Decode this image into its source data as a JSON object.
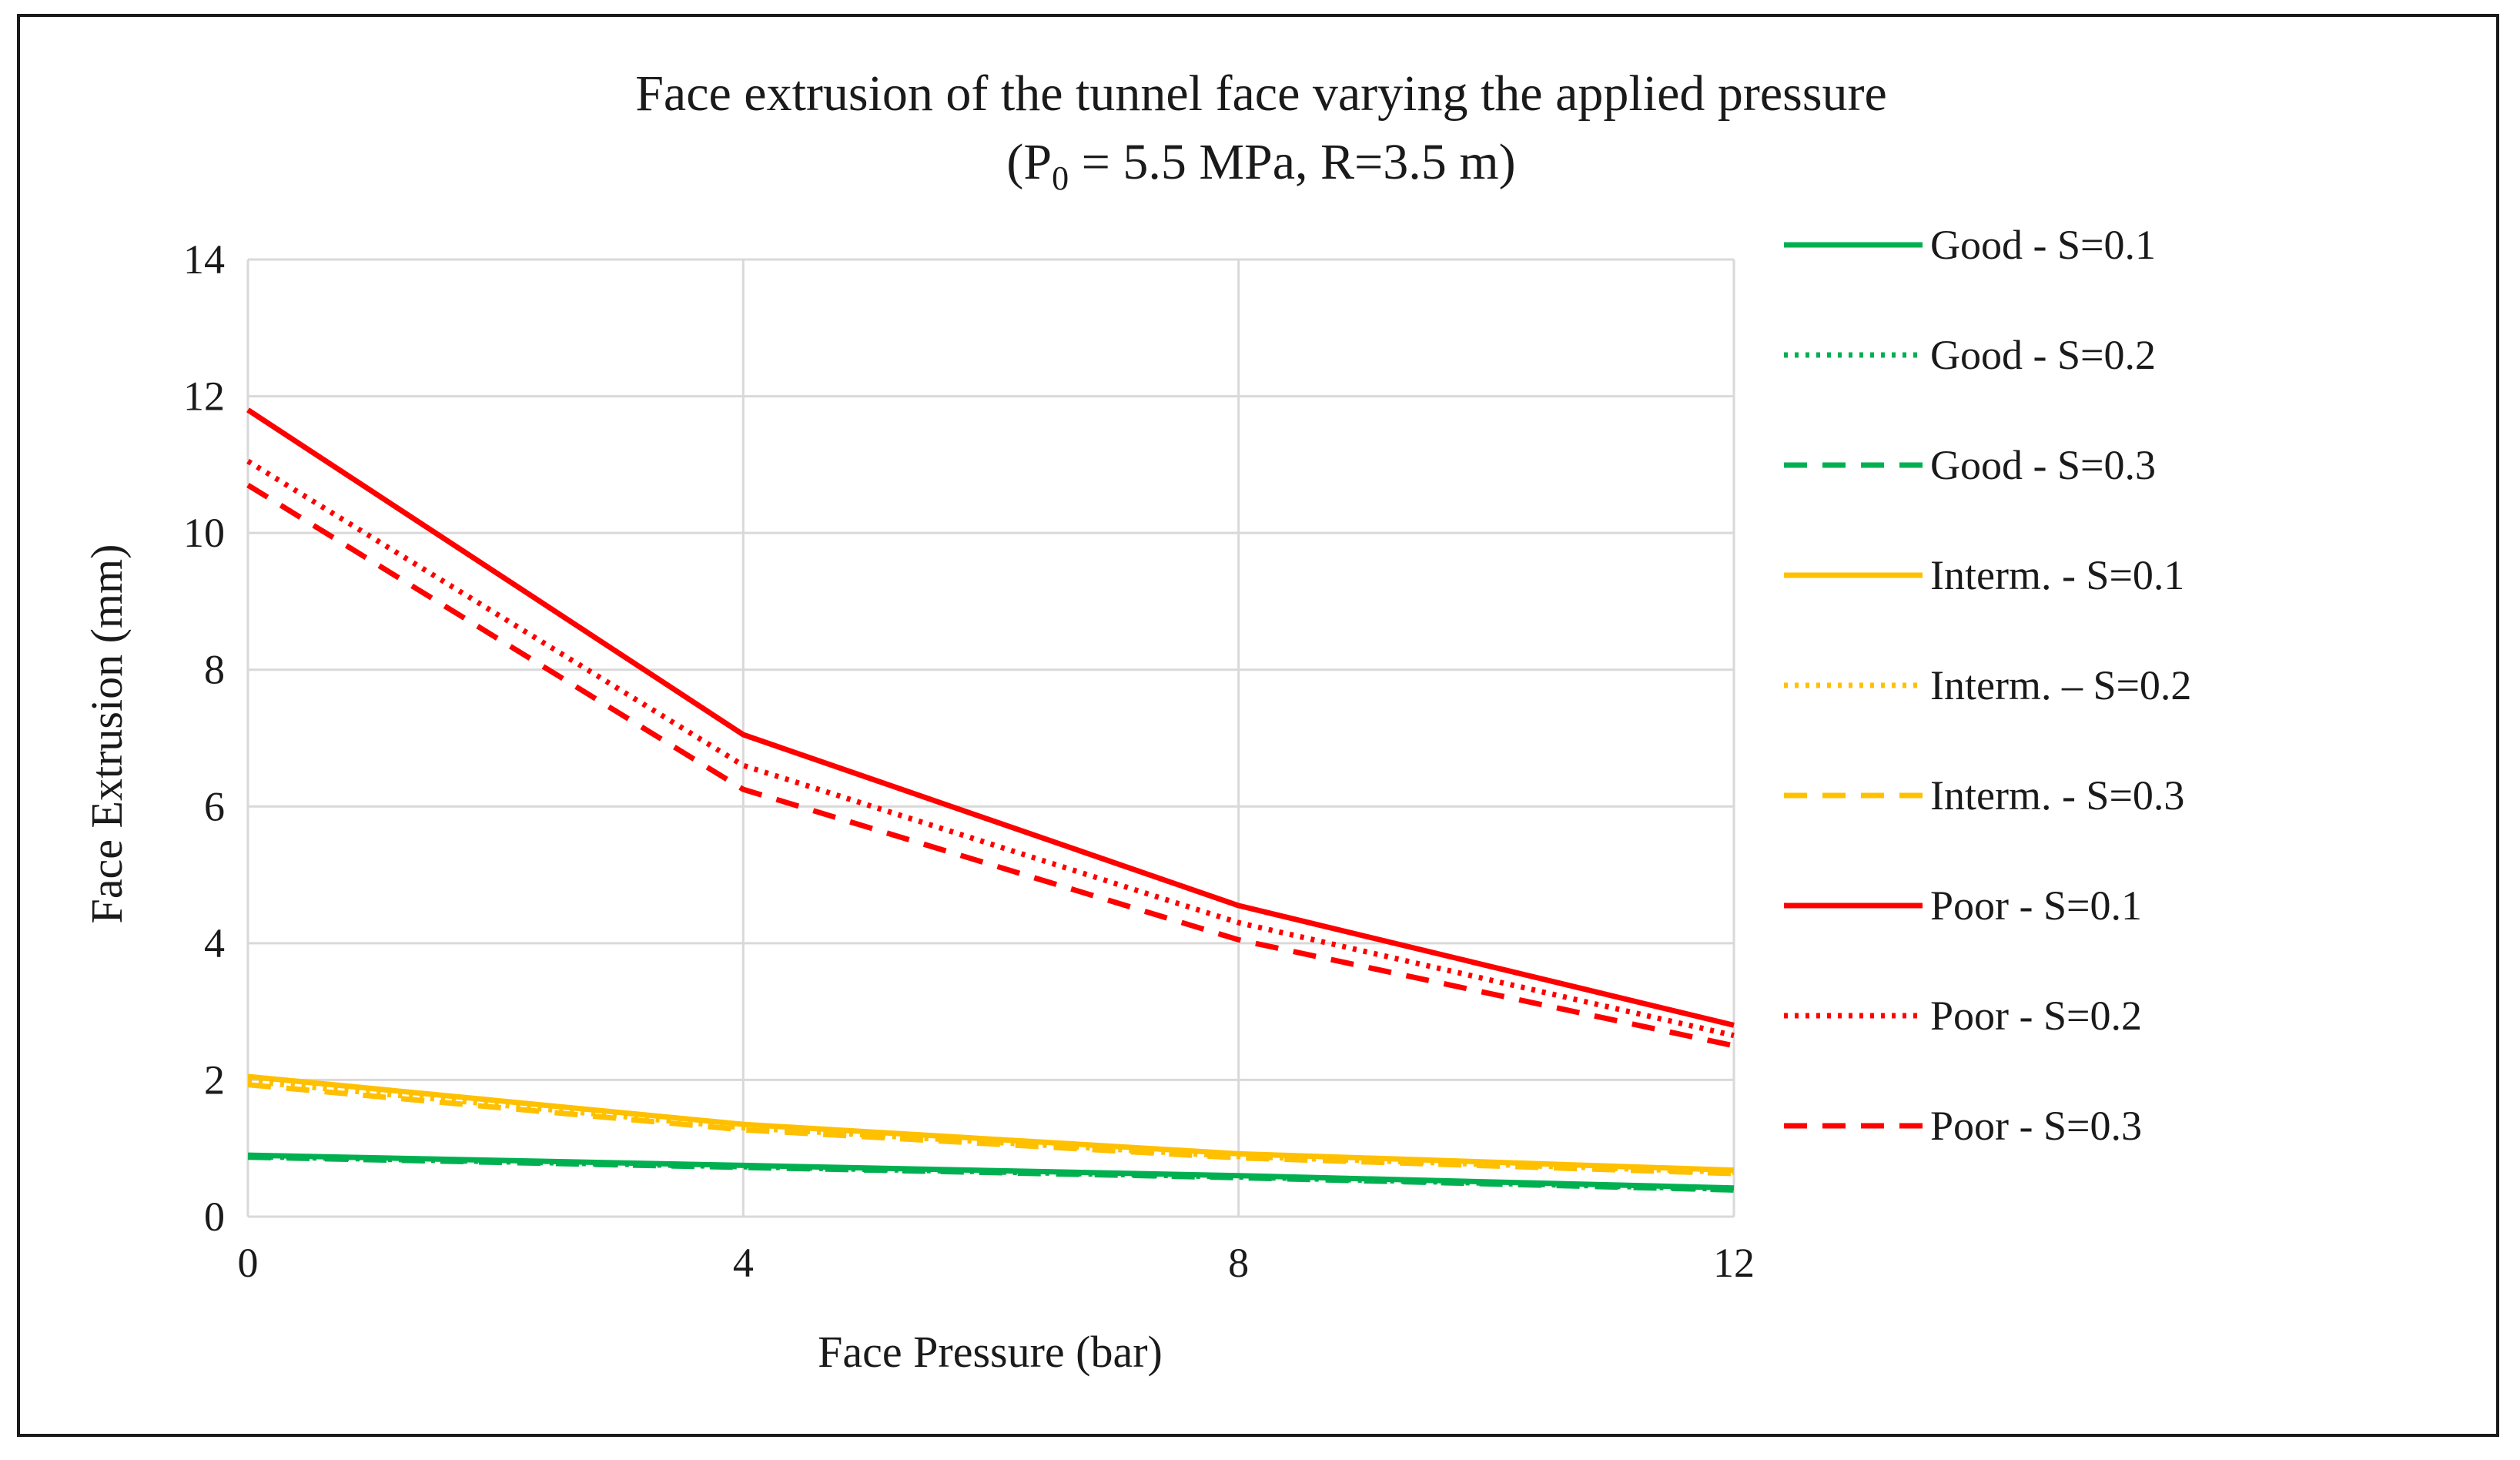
{
  "chart_data": {
    "type": "line",
    "title": "Face extrusion of the tunnel face varying the applied pressure",
    "subtitle_prefix": "(P",
    "subtitle_sub": "0",
    "subtitle_suffix": " = 5.5 MPa, R=3.5 m)",
    "xlabel": "Face Pressure (bar)",
    "ylabel": "Face Extrusion (mm)",
    "x": [
      0,
      4,
      8,
      12
    ],
    "x_ticks": [
      0,
      4,
      8,
      12
    ],
    "y_ticks": [
      0,
      2,
      4,
      6,
      8,
      10,
      12,
      14
    ],
    "xlim": [
      0,
      12
    ],
    "ylim": [
      0,
      14
    ],
    "grid": true,
    "legend_position": "right",
    "series": [
      {
        "name": "Good - S=0.1",
        "color": "#00b050",
        "style": "solid",
        "values": [
          0.9,
          0.75,
          0.6,
          0.42
        ]
      },
      {
        "name": "Good - S=0.2",
        "color": "#00b050",
        "style": "dotted",
        "values": [
          0.88,
          0.73,
          0.58,
          0.4
        ]
      },
      {
        "name": "Good - S=0.3",
        "color": "#00b050",
        "style": "dashed",
        "values": [
          0.87,
          0.72,
          0.57,
          0.39
        ]
      },
      {
        "name": "Interm. - S=0.1",
        "color": "#ffc000",
        "style": "solid",
        "values": [
          2.05,
          1.35,
          0.92,
          0.68
        ]
      },
      {
        "name": "Interm. – S=0.2",
        "color": "#ffc000",
        "style": "dotted",
        "values": [
          1.98,
          1.3,
          0.88,
          0.65
        ]
      },
      {
        "name": "Interm. - S=0.3",
        "color": "#ffc000",
        "style": "dashed",
        "values": [
          1.93,
          1.27,
          0.86,
          0.63
        ]
      },
      {
        "name": "Poor - S=0.1",
        "color": "#ff0000",
        "style": "solid",
        "values": [
          11.8,
          7.05,
          4.55,
          2.8
        ]
      },
      {
        "name": "Poor - S=0.2",
        "color": "#ff0000",
        "style": "dotted",
        "values": [
          11.05,
          6.6,
          4.3,
          2.65
        ]
      },
      {
        "name": "Poor - S=0.3",
        "color": "#ff0000",
        "style": "dashed",
        "values": [
          10.7,
          6.25,
          4.05,
          2.5
        ]
      }
    ]
  }
}
